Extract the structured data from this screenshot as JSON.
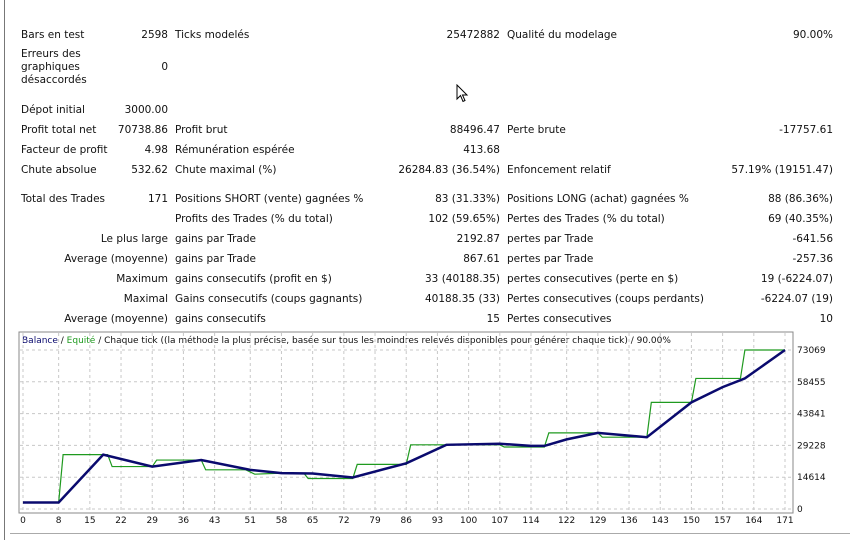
{
  "report": {
    "rows": [
      {
        "top": 0,
        "l1": "Bars en test",
        "v1": "2598",
        "l2": "Ticks modelés",
        "v2": "25472882",
        "l3": "Qualité du modelage",
        "v3": "90.00%"
      },
      {
        "top": 1,
        "l1": "Erreurs des graphiques désaccordés",
        "v1": "0",
        "l2": "",
        "v2": "",
        "l3": "",
        "v3": ""
      },
      {
        "top": 2,
        "l1": "Dépot initial",
        "v1": "3000.00",
        "l2": "",
        "v2": "",
        "l3": "",
        "v3": ""
      },
      {
        "top": 3,
        "l1": "Profit total net",
        "v1": "70738.86",
        "l2": "Profit brut",
        "v2": "88496.47",
        "l3": "Perte brute",
        "v3": "-17757.61"
      },
      {
        "top": 4,
        "l1": "Facteur de profit",
        "v1": "4.98",
        "l2": "Rémunération espérée",
        "v2": "413.68",
        "l3": "",
        "v3": ""
      },
      {
        "top": 5,
        "l1": "Chute absolue",
        "v1": "532.62",
        "l2": "Chute maximal (%)",
        "v2": "26284.83 (36.54%)",
        "l3": "Enfoncement relatif",
        "v3": "57.19% (19151.47)"
      },
      {
        "top": 6,
        "l1": "Total des Trades",
        "v1": "171",
        "l2": "Positions SHORT (vente) gagnées %",
        "v2": "83 (31.33%)",
        "l3": "Positions LONG (achat) gagnées %",
        "v3": "88 (86.36%)"
      },
      {
        "top": 7,
        "l1": "",
        "v1": "",
        "l2": "Profits des Trades (% du total)",
        "v2": "102 (59.65%)",
        "l3": "Pertes des Trades (% du total)",
        "v3": "69 (40.35%)"
      },
      {
        "top": 8,
        "l1": "",
        "v1": "Le plus large",
        "l2": "gains par Trade",
        "v2": "2192.87",
        "l3": "pertes par Trade",
        "v3": "-641.56"
      },
      {
        "top": 9,
        "l1": "",
        "v1": "Average (moyenne)",
        "l2": "gains par Trade",
        "v2": "867.61",
        "l3": "pertes par Trade",
        "v3": "-257.36"
      },
      {
        "top": 10,
        "l1": "",
        "v1": "Maximum",
        "l2": "gains consecutifs (profit en $)",
        "v2": "33 (40188.35)",
        "l3": "pertes consecutives (perte en $)",
        "v3": "19 (-6224.07)"
      },
      {
        "top": 11,
        "l1": "",
        "v1": "Maximal",
        "l2": "Gains consecutifs (coups gagnants)",
        "v2": "40188.35 (33)",
        "l3": "Pertes consecutives (coups perdants)",
        "v3": "-6224.07 (19)"
      },
      {
        "top": 12,
        "l1": "",
        "v1": "Average (moyenne)",
        "l2": "gains consecutifs",
        "v2": "15",
        "l3": "Pertes consecutives",
        "v3": "10"
      }
    ]
  },
  "chart_data": {
    "type": "line",
    "title_parts": {
      "balance": "Balance",
      "sep1": " / ",
      "equity": "Equité",
      "rest": " / Chaque tick ((la méthode la plus précise, basée sur tous les moindres relevés disponibles pour générer chaque tick) / 90.00%"
    },
    "colors": {
      "balance": "#0a0a6e",
      "equity": "#1f9a1f",
      "grid": "#c8c8c8"
    },
    "xlim": [
      0,
      171
    ],
    "ylim": [
      0,
      73069
    ],
    "x_ticks": [
      0,
      8,
      15,
      22,
      29,
      36,
      43,
      51,
      58,
      65,
      72,
      79,
      86,
      93,
      100,
      107,
      114,
      122,
      129,
      136,
      143,
      150,
      157,
      164,
      171
    ],
    "y_ticks": [
      0,
      14614,
      29228,
      43841,
      58455,
      73069
    ],
    "series": [
      {
        "name": "Balance",
        "points": [
          [
            0,
            3000
          ],
          [
            8,
            3000
          ],
          [
            18,
            25000
          ],
          [
            29,
            19500
          ],
          [
            40,
            22500
          ],
          [
            51,
            18000
          ],
          [
            58,
            16500
          ],
          [
            65,
            16300
          ],
          [
            74,
            14500
          ],
          [
            86,
            21000
          ],
          [
            95,
            29500
          ],
          [
            107,
            30000
          ],
          [
            114,
            29000
          ],
          [
            117,
            29000
          ],
          [
            122,
            32000
          ],
          [
            129,
            35000
          ],
          [
            140,
            33000
          ],
          [
            150,
            49000
          ],
          [
            157,
            56000
          ],
          [
            162,
            60000
          ],
          [
            171,
            73069
          ]
        ]
      },
      {
        "name": "Equité",
        "points": [
          [
            0,
            3000
          ],
          [
            8,
            3000
          ],
          [
            9,
            25000
          ],
          [
            19,
            25000
          ],
          [
            20,
            19500
          ],
          [
            29,
            19500
          ],
          [
            30,
            22500
          ],
          [
            40,
            22500
          ],
          [
            41,
            18000
          ],
          [
            50,
            18000
          ],
          [
            52,
            16000
          ],
          [
            58,
            16500
          ],
          [
            63,
            16500
          ],
          [
            64,
            14000
          ],
          [
            74,
            14000
          ],
          [
            75,
            20500
          ],
          [
            86,
            20500
          ],
          [
            87,
            29500
          ],
          [
            95,
            29500
          ],
          [
            107,
            29500
          ],
          [
            108,
            28500
          ],
          [
            117,
            28500
          ],
          [
            118,
            35000
          ],
          [
            129,
            35000
          ],
          [
            130,
            33000
          ],
          [
            140,
            33000
          ],
          [
            141,
            49000
          ],
          [
            150,
            49000
          ],
          [
            151,
            60000
          ],
          [
            161,
            60000
          ],
          [
            162,
            73069
          ],
          [
            171,
            73069
          ]
        ]
      }
    ]
  }
}
